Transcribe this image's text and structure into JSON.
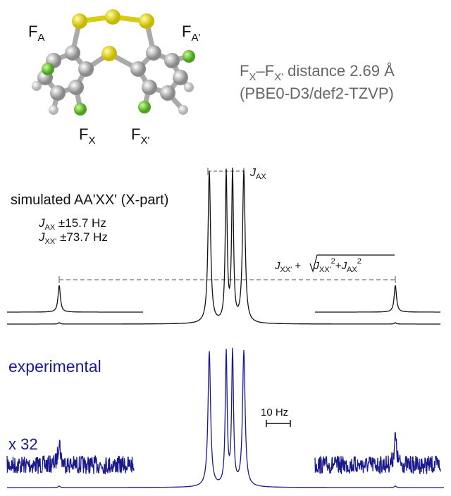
{
  "molecule": {
    "labels": [
      {
        "main": "F",
        "sub": "A"
      },
      {
        "main": "F",
        "sub": "A'"
      },
      {
        "main": "F",
        "sub": "X"
      },
      {
        "main": "F",
        "sub": "X'"
      }
    ]
  },
  "distance": {
    "line1": {
      "f1": "F",
      "sub1": "X",
      "f2": "–F",
      "sub2": "X'",
      "rest": " distance 2.69 Å"
    },
    "line2": "(PBE0-D3/def2-TZVP)"
  },
  "simulated": {
    "label": "simulated AA'XX' (X-part)",
    "couplings": [
      {
        "symbol": "J",
        "sub": "AX",
        "value": " ±15.7 Hz"
      },
      {
        "symbol": "J",
        "sub": "XX'",
        "value": " ±73.7 Hz"
      }
    ],
    "jax_label": {
      "symbol": "J",
      "sub": "AX"
    },
    "formula": {
      "t1": "J",
      "s1": "XX'",
      "plus1": " + ",
      "t2": "J",
      "s2": "XX'",
      "p2": "2",
      "plus2": "+",
      "t3": "J",
      "s3": "AX",
      "p3": "2"
    }
  },
  "experimental": {
    "label": "experimental",
    "scale": "x 32",
    "scale_bar": "10 Hz"
  }
}
